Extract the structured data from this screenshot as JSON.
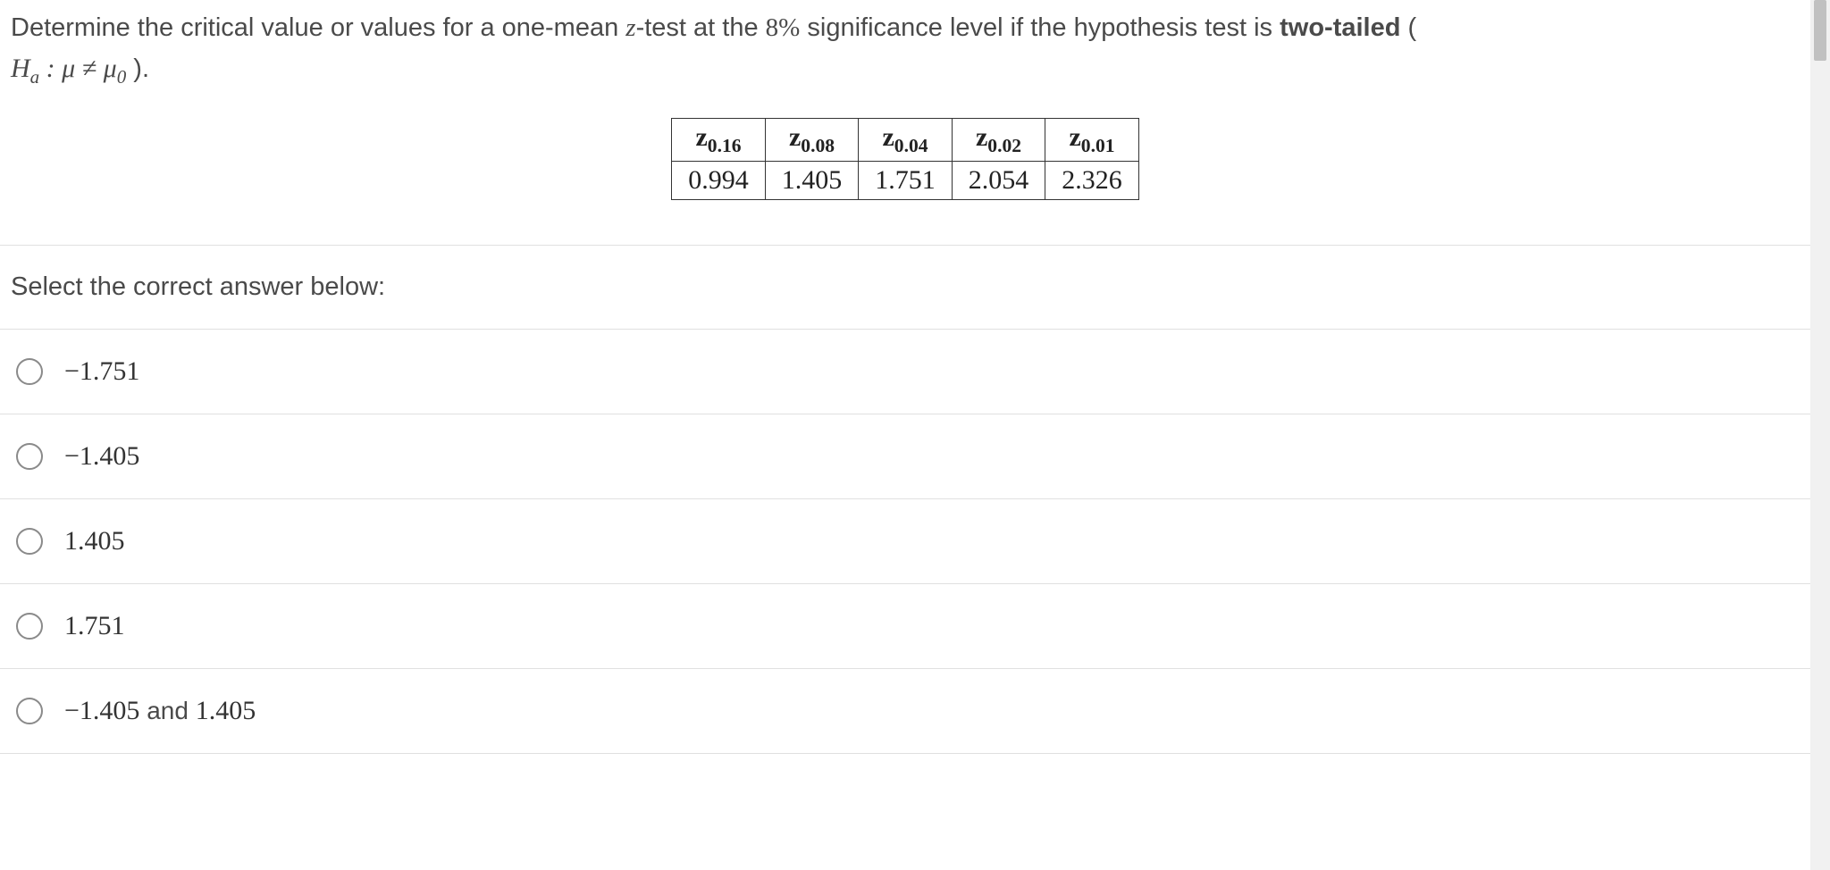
{
  "question": {
    "line1_pre": "Determine the critical value or values for a one-mean ",
    "line1_var": "z",
    "line1_mid": "-test at the ",
    "line1_sig": "8%",
    "line1_post": " significance level if the hypothesis test is ",
    "line1_bold": "two-tailed",
    "line1_end": " (",
    "hyp_html": "H<sub>a</sub> : μ ≠ μ<sub>0</sub>",
    "line2_end": " )."
  },
  "z_table": {
    "headers": [
      {
        "z": "z",
        "sub": "0.16"
      },
      {
        "z": "z",
        "sub": "0.08"
      },
      {
        "z": "z",
        "sub": "0.04"
      },
      {
        "z": "z",
        "sub": "0.02"
      },
      {
        "z": "z",
        "sub": "0.01"
      }
    ],
    "values": [
      "0.994",
      "1.405",
      "1.751",
      "2.054",
      "2.326"
    ],
    "border_color": "#333333",
    "font_family": "Times New Roman",
    "header_fontsize": 30,
    "value_fontsize": 30
  },
  "prompt": "Select the correct answer below:",
  "options": [
    {
      "label": "−1.751"
    },
    {
      "label": "−1.405"
    },
    {
      "label": "1.405"
    },
    {
      "label": "1.751"
    },
    {
      "label_pre": "−1.405",
      "and": " and ",
      "label_post": "1.405"
    }
  ],
  "colors": {
    "text": "#4a4a4a",
    "border": "#e0e0e0",
    "radio_border": "#8a8a8a",
    "background": "#ffffff",
    "scrollbar_track": "#f1f1f1",
    "scrollbar_thumb": "#c1c1c1"
  },
  "typography": {
    "body_font": "Helvetica Neue, Arial, sans-serif",
    "math_font": "Times New Roman, serif",
    "body_fontsize": 29,
    "option_fontsize": 30,
    "body_weight": 300
  }
}
